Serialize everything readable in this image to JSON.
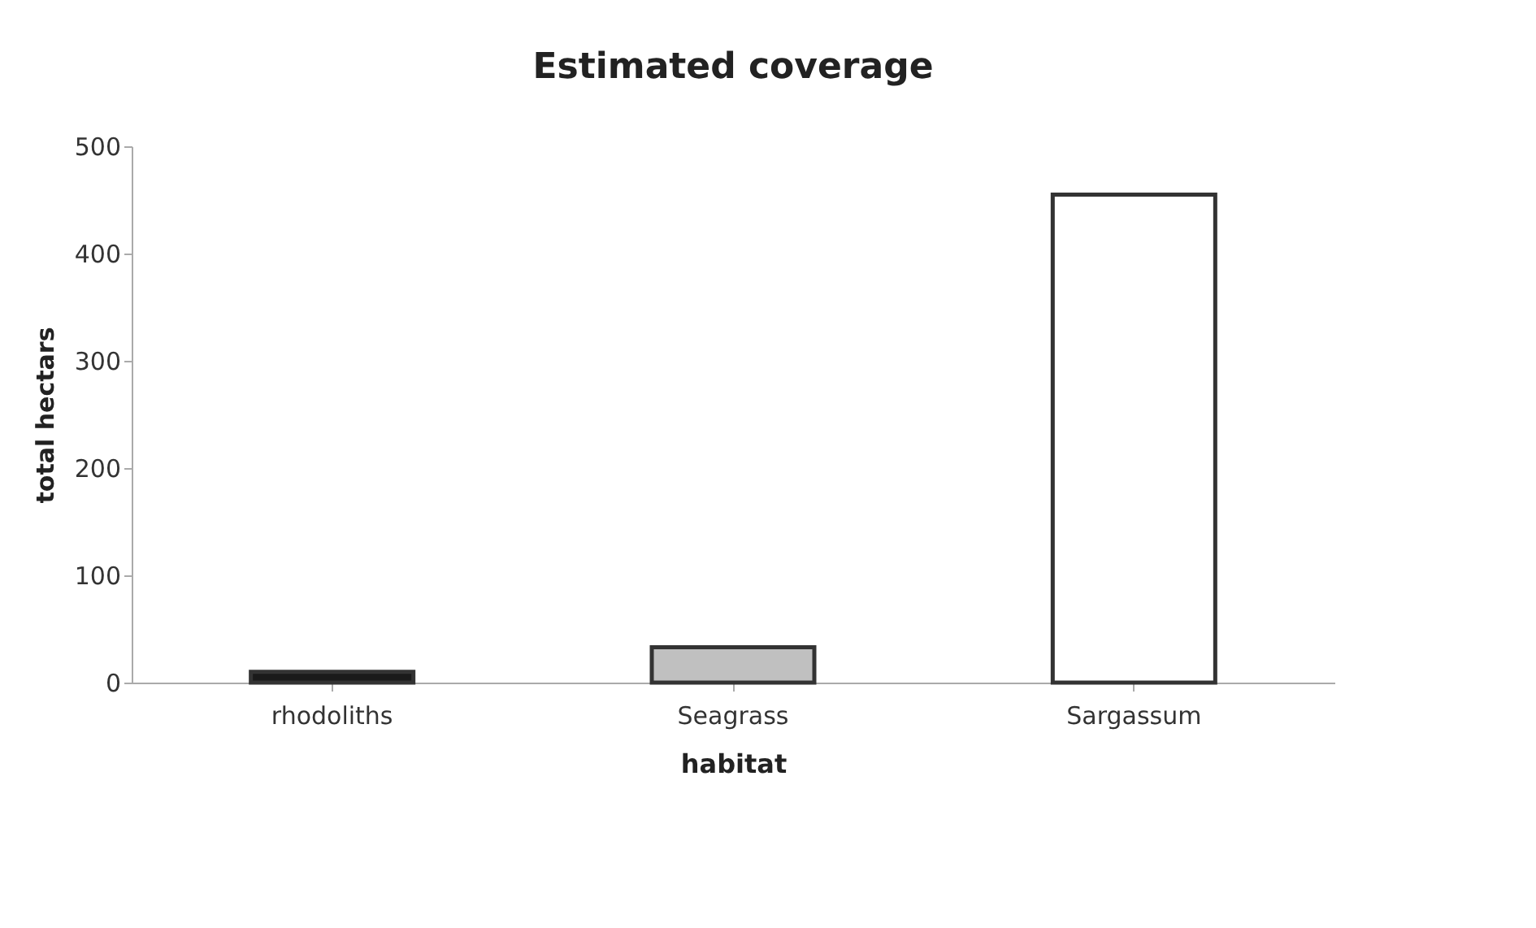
{
  "chart_data": {
    "type": "bar",
    "title": "Estimated coverage",
    "xlabel": "habitat",
    "ylabel": "total hectars",
    "categories": [
      "rhodoliths",
      "Seagrass",
      "Sargassum"
    ],
    "values": [
      10,
      33,
      455
    ],
    "colors": [
      "#1a1a1a",
      "#c0c0c0",
      "#ffffff"
    ],
    "ylim": [
      0,
      500
    ],
    "yticks": [
      0,
      100,
      200,
      300,
      400,
      500
    ],
    "grid": false
  }
}
